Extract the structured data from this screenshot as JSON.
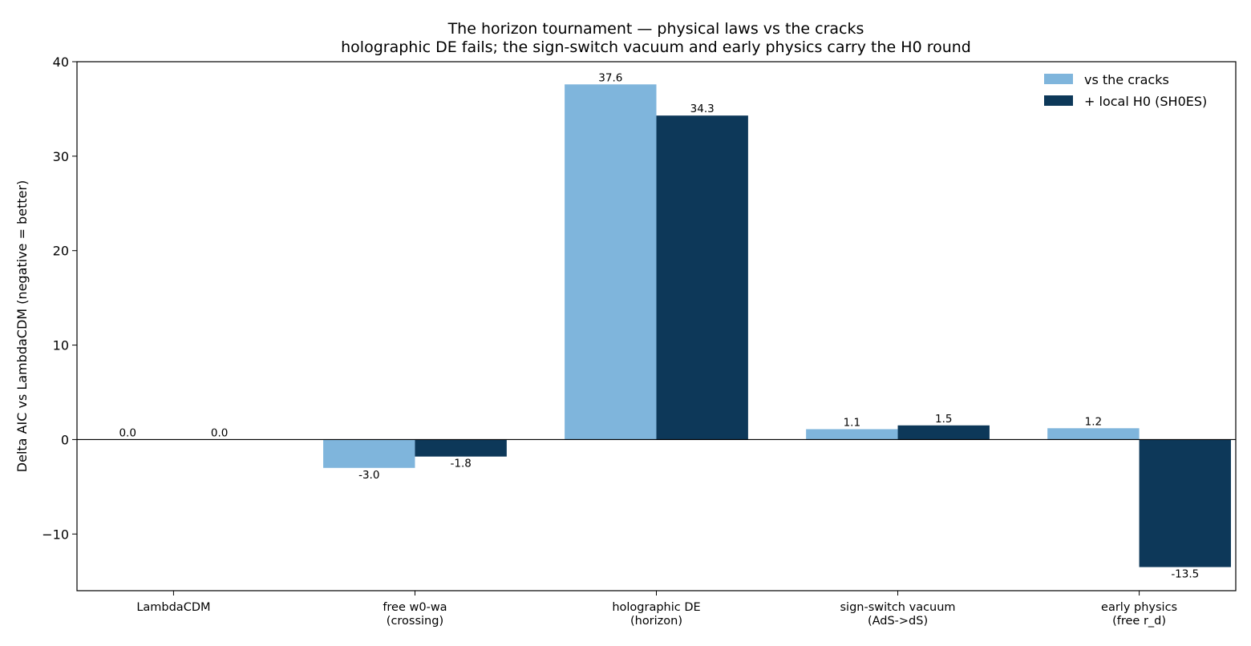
{
  "chart_data": {
    "type": "bar",
    "title": "The horizon tournament — physical laws vs the cracks",
    "subtitle": "holographic DE fails; the sign-switch vacuum and early physics carry the H0 round",
    "xlabel": "",
    "ylabel": "Delta AIC vs LambdaCDM  (negative = better)",
    "ylim": [
      -16,
      40
    ],
    "yticks": [
      -10,
      0,
      10,
      20,
      30,
      40
    ],
    "grid": false,
    "legend_position": "top-right",
    "categories": [
      [
        "LambdaCDM"
      ],
      [
        "free w0-wa",
        "(crossing)"
      ],
      [
        "holographic DE",
        "(horizon)"
      ],
      [
        "sign-switch vacuum",
        "(AdS->dS)"
      ],
      [
        "early physics",
        "(free r_d)"
      ]
    ],
    "series": [
      {
        "name": "vs the cracks",
        "color": "#7fb5dc",
        "values": [
          0.0,
          -3.0,
          37.6,
          1.1,
          1.2
        ],
        "labels": [
          "0.0",
          "-3.0",
          "37.6",
          "1.1",
          "1.2"
        ]
      },
      {
        "name": "+ local H0 (SH0ES)",
        "color": "#0d3859",
        "values": [
          0.0,
          -1.8,
          34.3,
          1.5,
          -13.5
        ],
        "labels": [
          "0.0",
          "-1.8",
          "34.3",
          "1.5",
          "-13.5"
        ]
      }
    ]
  }
}
